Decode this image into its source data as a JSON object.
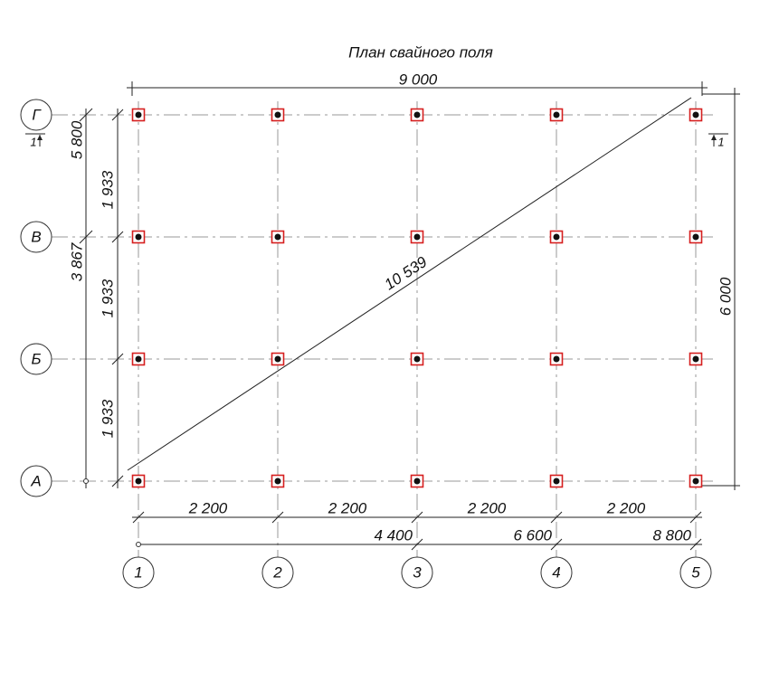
{
  "title": "План свайного поля",
  "dimensions": {
    "overall_width": "9 000",
    "diagonal": "10 539",
    "overall_height": "6 000",
    "left_outer": [
      "5 800",
      "3 867"
    ],
    "left_spans": [
      "1 933",
      "1 933",
      "1 933"
    ],
    "bottom_spans": [
      "2 200",
      "2 200",
      "2 200",
      "2 200"
    ],
    "bottom_cumulative": [
      "4 400",
      "6 600",
      "8 800"
    ]
  },
  "axes": {
    "rows": [
      "Г",
      "В",
      "Б",
      "А"
    ],
    "columns": [
      "1",
      "2",
      "3",
      "4",
      "5"
    ]
  },
  "section_marks": [
    "1",
    "1"
  ]
}
